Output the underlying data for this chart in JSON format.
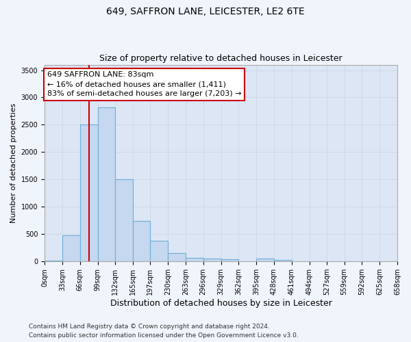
{
  "title1": "649, SAFFRON LANE, LEICESTER, LE2 6TE",
  "title2": "Size of property relative to detached houses in Leicester",
  "xlabel": "Distribution of detached houses by size in Leicester",
  "ylabel": "Number of detached properties",
  "bin_edges": [
    0,
    33,
    66,
    99,
    132,
    165,
    197,
    230,
    263,
    296,
    329,
    362,
    395,
    428,
    461,
    494,
    527,
    559,
    592,
    625,
    658
  ],
  "bin_labels": [
    "0sqm",
    "33sqm",
    "66sqm",
    "99sqm",
    "132sqm",
    "165sqm",
    "197sqm",
    "230sqm",
    "263sqm",
    "296sqm",
    "329sqm",
    "362sqm",
    "395sqm",
    "428sqm",
    "461sqm",
    "494sqm",
    "527sqm",
    "559sqm",
    "592sqm",
    "625sqm",
    "658sqm"
  ],
  "bar_heights": [
    20,
    480,
    2500,
    2820,
    1500,
    740,
    380,
    155,
    70,
    55,
    45,
    0,
    55,
    30,
    0,
    0,
    0,
    0,
    0,
    0
  ],
  "bar_color": "#c5d8ef",
  "bar_edge_color": "#6baed6",
  "property_size": 83,
  "vline_color": "#cc0000",
  "annotation_text": "649 SAFFRON LANE: 83sqm\n← 16% of detached houses are smaller (1,411)\n83% of semi-detached houses are larger (7,203) →",
  "annotation_box_color": "#ffffff",
  "annotation_box_edge_color": "#cc0000",
  "ylim": [
    0,
    3600
  ],
  "yticks": [
    0,
    500,
    1000,
    1500,
    2000,
    2500,
    3000,
    3500
  ],
  "grid_color": "#d0d8e8",
  "background_color": "#dce6f5",
  "fig_background_color": "#f0f4fb",
  "footer_line1": "Contains HM Land Registry data © Crown copyright and database right 2024.",
  "footer_line2": "Contains public sector information licensed under the Open Government Licence v3.0.",
  "title1_fontsize": 10,
  "title2_fontsize": 9,
  "xlabel_fontsize": 9,
  "ylabel_fontsize": 8,
  "tick_fontsize": 7,
  "annotation_fontsize": 8,
  "footer_fontsize": 6.5
}
